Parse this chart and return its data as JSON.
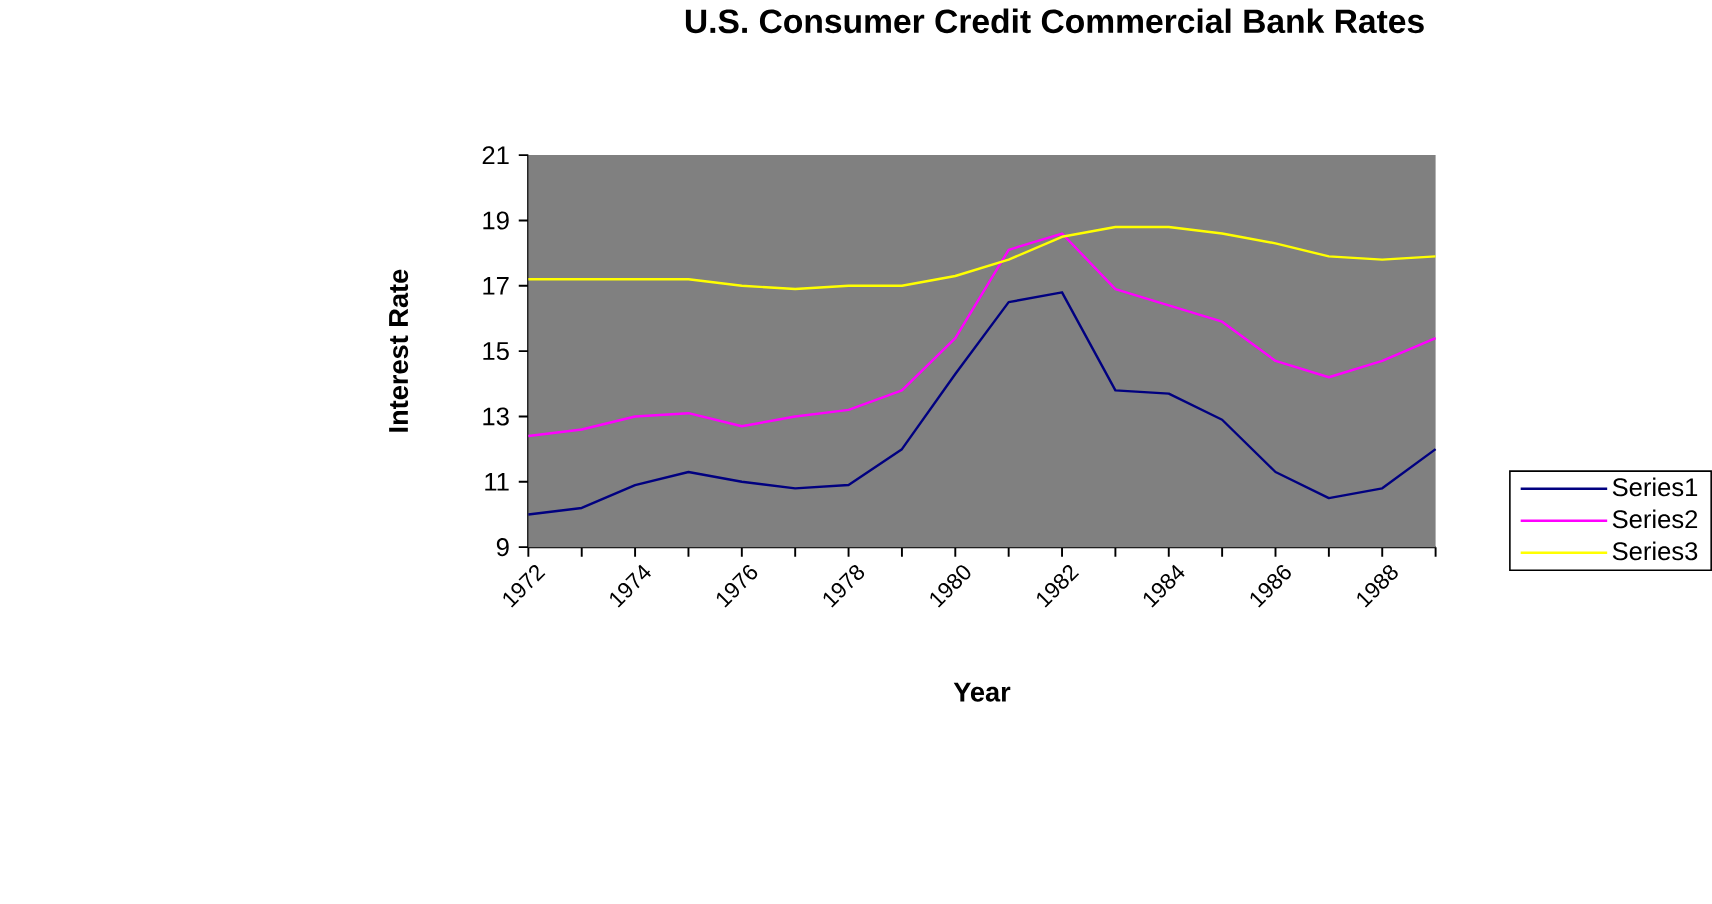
{
  "chart_data": {
    "type": "line",
    "title": "U.S. Consumer Credit Commercial Bank Rates",
    "xlabel": "Year",
    "ylabel": "Interest Rate",
    "categories": [
      "1972",
      null,
      "1974",
      null,
      "1976",
      null,
      "1978",
      null,
      "1980",
      null,
      "1982",
      null,
      "1984",
      null,
      "1986",
      null,
      "1988",
      null
    ],
    "ylim": [
      9,
      21
    ],
    "yticks": [
      9,
      11,
      13,
      15,
      17,
      19,
      21
    ],
    "grid": false,
    "legend": "right",
    "marker": "none",
    "line_style": "solid",
    "series": [
      {
        "name": "Series1",
        "color": "#000080",
        "values": [
          10.0,
          10.2,
          10.9,
          11.3,
          11.0,
          10.8,
          10.9,
          12.0,
          14.3,
          16.5,
          16.8,
          13.8,
          13.7,
          12.9,
          11.3,
          10.5,
          10.8,
          12.0
        ]
      },
      {
        "name": "Series2",
        "color": "#ff00ff",
        "values": [
          12.4,
          12.6,
          13.0,
          13.1,
          12.7,
          13.0,
          13.2,
          13.8,
          15.4,
          18.1,
          18.6,
          16.9,
          16.4,
          15.9,
          14.7,
          14.2,
          14.7,
          15.4
        ]
      },
      {
        "name": "Series3",
        "color": "#ffff00",
        "values": [
          17.2,
          17.2,
          17.2,
          17.2,
          17.0,
          16.9,
          17.0,
          17.0,
          17.3,
          17.8,
          18.5,
          18.8,
          18.8,
          18.6,
          18.3,
          17.9,
          17.8,
          17.9
        ]
      }
    ]
  }
}
